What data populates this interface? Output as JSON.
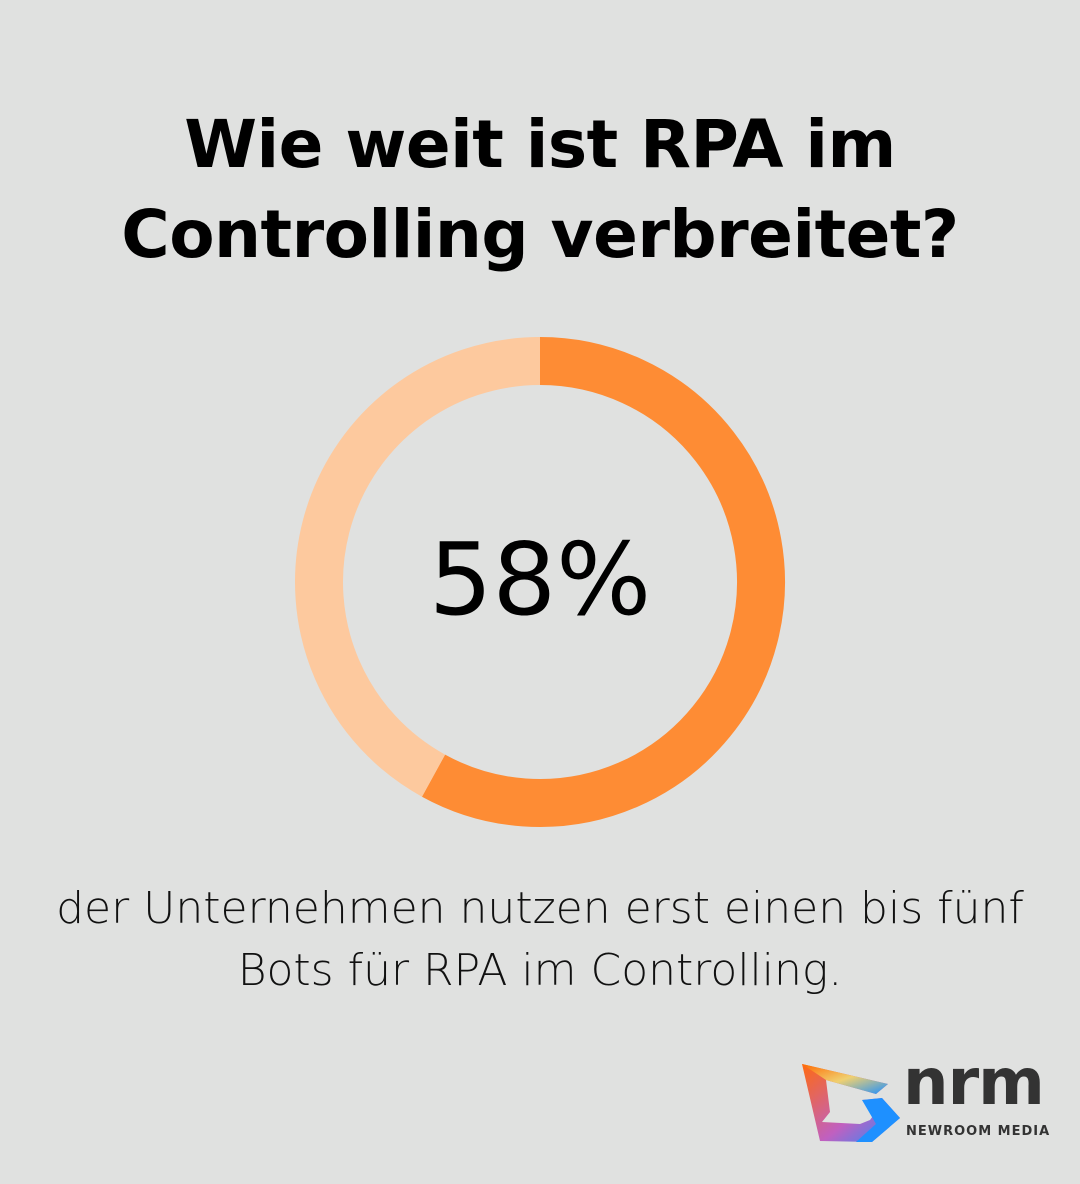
{
  "title": {
    "line1": "Wie weit ist RPA im",
    "line2": "Controlling verbreitet?"
  },
  "chart_data": {
    "type": "pie",
    "variant": "donut",
    "values": [
      58,
      42
    ],
    "colors": [
      "#fe8c34",
      "#fdc99e"
    ],
    "center_label": "58%"
  },
  "caption": {
    "line1": "der Unternehmen nutzen erst einen bis fünf",
    "line2": "Bots für RPA im Controlling."
  },
  "logo": {
    "name": "nrm",
    "subtitle": "NEWROOM MEDIA"
  },
  "colors": {
    "background": "#e0e1e0"
  }
}
